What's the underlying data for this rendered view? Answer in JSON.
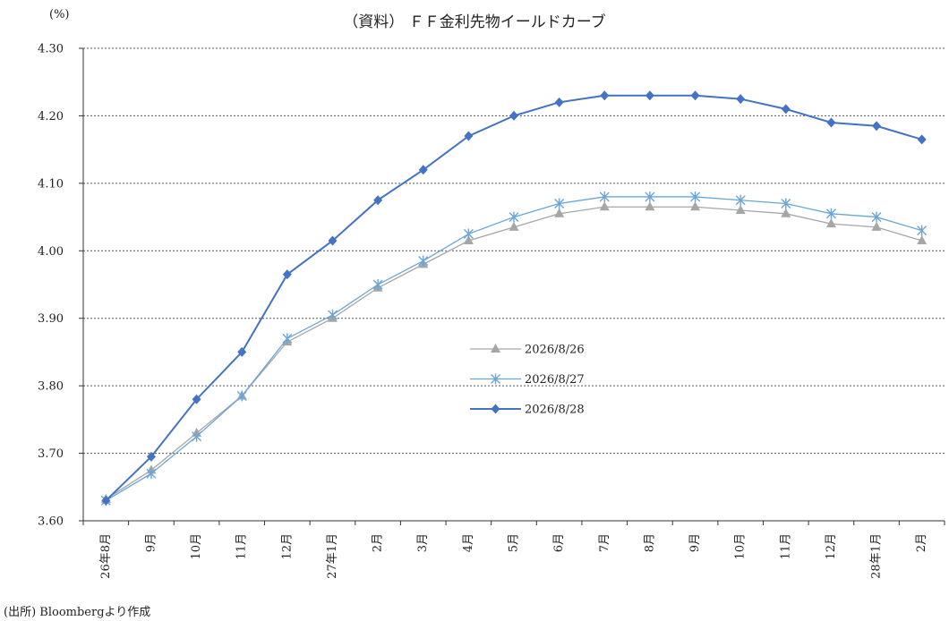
{
  "source_note": "(出所) Bloombergより作成",
  "chart_data": {
    "type": "line",
    "title": "（資料） ＦＦ金利先物イールドカーブ",
    "unit_label": "(%)",
    "xlabel": "",
    "ylabel": "",
    "ylim": [
      3.6,
      4.3
    ],
    "yticks": [
      "3.60",
      "3.70",
      "3.80",
      "3.90",
      "4.00",
      "4.10",
      "4.20",
      "4.30"
    ],
    "grid": true,
    "legend_position": "center",
    "categories": [
      "26年8月",
      "9月",
      "10月",
      "11月",
      "12月",
      "27年1月",
      "2月",
      "3月",
      "4月",
      "5月",
      "6月",
      "7月",
      "8月",
      "9月",
      "10月",
      "11月",
      "12月",
      "28年1月",
      "2月"
    ],
    "series": [
      {
        "name": "2026/8/26",
        "color": "#a6a6a6",
        "marker": "triangle",
        "values": [
          3.632,
          3.675,
          3.73,
          3.785,
          3.865,
          3.9,
          3.945,
          3.98,
          4.015,
          4.035,
          4.055,
          4.065,
          4.065,
          4.065,
          4.06,
          4.055,
          4.04,
          4.035,
          4.015
        ]
      },
      {
        "name": "2026/8/27",
        "color": "#6aa5d8",
        "marker": "asterisk",
        "values": [
          3.63,
          3.67,
          3.725,
          3.785,
          3.87,
          3.905,
          3.95,
          3.985,
          4.025,
          4.05,
          4.07,
          4.08,
          4.08,
          4.08,
          4.075,
          4.07,
          4.055,
          4.05,
          4.03
        ]
      },
      {
        "name": "2026/8/28",
        "color": "#4472c4",
        "marker": "diamond",
        "values": [
          3.63,
          3.695,
          3.78,
          3.85,
          3.965,
          4.015,
          4.075,
          4.12,
          4.17,
          4.2,
          4.22,
          4.23,
          4.23,
          4.23,
          4.225,
          4.21,
          4.19,
          4.185,
          4.165
        ]
      }
    ]
  }
}
